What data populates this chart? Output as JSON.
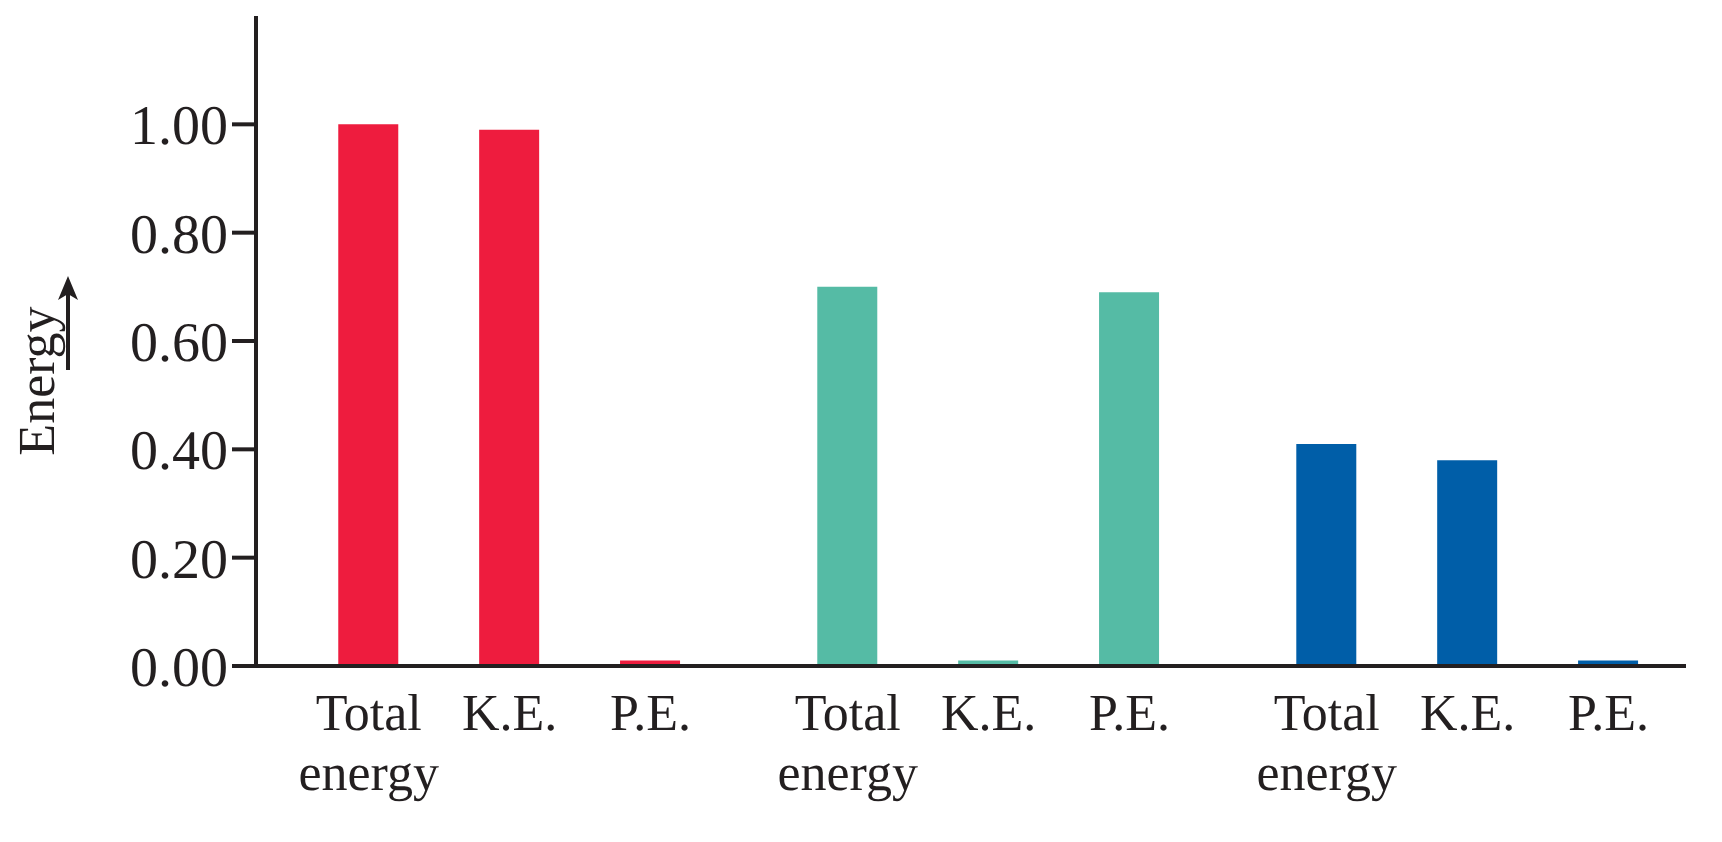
{
  "chart_data": {
    "type": "bar",
    "ylabel": "Energy",
    "categories": [
      "Total energy",
      "K.E.",
      "P.E.",
      "Total energy",
      "K.E.",
      "P.E.",
      "Total energy",
      "K.E.",
      "P.E."
    ],
    "values": [
      1.0,
      0.99,
      0.01,
      0.7,
      0.01,
      0.69,
      0.41,
      0.38,
      0.01
    ],
    "colors": [
      "#ee1c3e",
      "#ee1c3e",
      "#ee1c3e",
      "#55bba5",
      "#55bba5",
      "#55bba5",
      "#005ea8",
      "#005ea8",
      "#005ea8"
    ],
    "ylim": [
      0,
      1.2
    ],
    "yticks": [
      {
        "value": 0,
        "label": "0.00"
      },
      {
        "value": 0.2,
        "label": "0.20"
      },
      {
        "value": 0.4,
        "label": "0.40"
      },
      {
        "value": 0.6,
        "label": "0.60"
      },
      {
        "value": 0.8,
        "label": "0.80"
      },
      {
        "value": 1,
        "label": "1.00"
      }
    ],
    "grid": false,
    "legend": false
  }
}
